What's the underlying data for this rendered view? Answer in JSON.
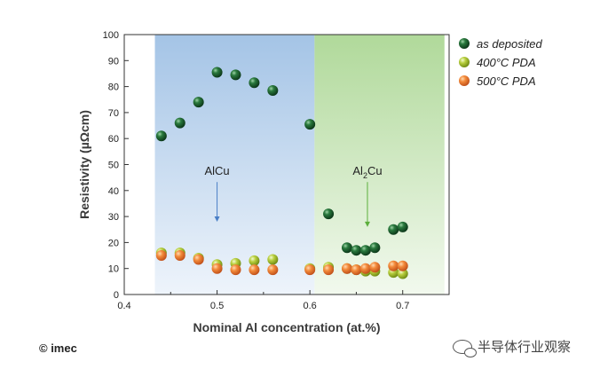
{
  "chart_data": {
    "type": "scatter",
    "title": "",
    "xlabel": "Nominal Al concentration (at.%)",
    "ylabel": "Resistivity (µΩcm)",
    "xlim": [
      0.4,
      0.75
    ],
    "ylim": [
      0,
      100
    ],
    "xticks": [
      0.4,
      0.5,
      0.6,
      0.7
    ],
    "xtick_labels": [
      "0.4",
      "0.5",
      "0.6",
      "0.7"
    ],
    "yticks": [
      0,
      10,
      20,
      30,
      40,
      50,
      60,
      70,
      80,
      90,
      100
    ],
    "ytick_labels": [
      "0",
      "10",
      "20",
      "30",
      "40",
      "50",
      "60",
      "70",
      "80",
      "90",
      "100"
    ],
    "legend_position": "top-right",
    "regions": [
      {
        "name": "AlCu",
        "x_start": 0.433,
        "x_end": 0.605,
        "color": "#aac8e8"
      },
      {
        "name": "Al2Cu",
        "x_start": 0.605,
        "x_end": 0.745,
        "color": "#b6dca0"
      }
    ],
    "annotations": [
      {
        "text": "AlCu",
        "x": 0.5,
        "y": 46,
        "arrow_to_y": 28,
        "arrow_color": "#4a7fc6"
      },
      {
        "text_main": "Al",
        "text_sub": "2",
        "text_tail": "Cu",
        "x": 0.662,
        "y": 46,
        "arrow_to_y": 26,
        "arrow_color": "#5caf3c"
      }
    ],
    "series": [
      {
        "name": "as deposited",
        "color": "#1e5e30",
        "x": [
          0.44,
          0.46,
          0.48,
          0.5,
          0.52,
          0.54,
          0.56,
          0.6,
          0.62,
          0.64,
          0.65,
          0.66,
          0.67,
          0.69,
          0.7
        ],
        "y": [
          61,
          66,
          74,
          85.5,
          84.5,
          81.5,
          78.5,
          65.5,
          31,
          18,
          17,
          17,
          18,
          25,
          26
        ]
      },
      {
        "name": "400°C PDA",
        "color": "#a9c23a",
        "x": [
          0.44,
          0.46,
          0.48,
          0.5,
          0.52,
          0.54,
          0.56,
          0.6,
          0.62,
          0.64,
          0.65,
          0.66,
          0.67,
          0.69,
          0.7
        ],
        "y": [
          16,
          16,
          14,
          11.5,
          12,
          13,
          13.5,
          10,
          10.5,
          10,
          9.5,
          9,
          9,
          8.5,
          8
        ]
      },
      {
        "name": "500°C PDA",
        "color": "#ee7b2c",
        "x": [
          0.44,
          0.46,
          0.48,
          0.5,
          0.52,
          0.54,
          0.56,
          0.6,
          0.62,
          0.64,
          0.65,
          0.66,
          0.67,
          0.69,
          0.7
        ],
        "y": [
          15,
          15,
          13.5,
          10,
          9.5,
          9.5,
          9.5,
          9.5,
          9.5,
          10,
          9.5,
          10,
          10.5,
          11,
          11
        ]
      }
    ]
  },
  "footer": {
    "copyright": "© imec",
    "watermark": "半导体行业观察"
  }
}
